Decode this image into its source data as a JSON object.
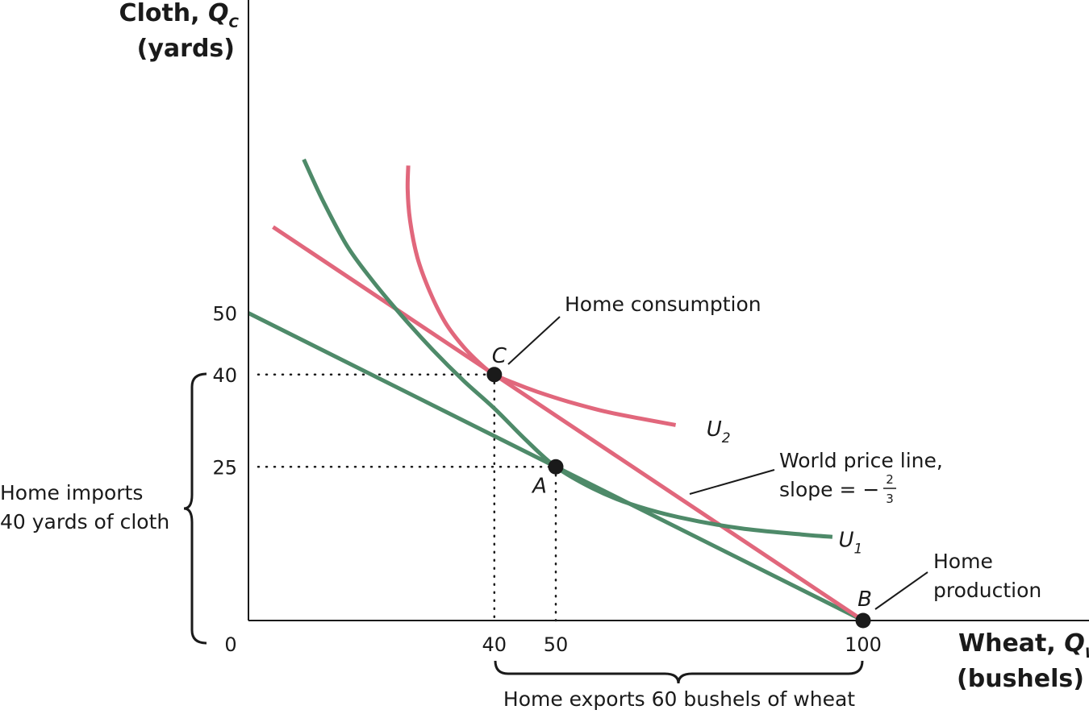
{
  "chart_data": {
    "type": "line",
    "y_axis": {
      "title_line1": "Cloth, ",
      "title_var": "Q",
      "title_sub": "C",
      "title_line2": "(yards)"
    },
    "x_axis": {
      "title_line1": "Wheat, ",
      "title_var": "Q",
      "title_sub": "W",
      "title_line2": "(bushels)"
    },
    "xlim": [
      0,
      137
    ],
    "ylim": [
      0,
      92
    ],
    "origin_label": "0",
    "x_ticks": [
      {
        "value": 40,
        "label": "40"
      },
      {
        "value": 50,
        "label": "50"
      },
      {
        "value": 100,
        "label": "100"
      }
    ],
    "y_ticks": [
      {
        "value": 25,
        "label": "25"
      },
      {
        "value": 40,
        "label": "40"
      },
      {
        "value": 50,
        "label": "50"
      }
    ],
    "colors": {
      "green": "#4e8a69",
      "red": "#e1677c",
      "axis": "#1a1a1a"
    },
    "lines": [
      {
        "id": "home-price-line",
        "color": "green",
        "x": [
          0,
          100
        ],
        "y": [
          50,
          0
        ]
      },
      {
        "id": "world-price-line",
        "color": "red",
        "x": [
          4,
          100
        ],
        "y": [
          64,
          0
        ]
      }
    ],
    "curves": [
      {
        "id": "u1-curve",
        "color": "green",
        "label_var": "U",
        "label_sub": "1",
        "label_at": {
          "x": 96,
          "y": 12
        },
        "x": [
          9,
          12,
          16,
          20,
          25,
          30,
          35,
          40,
          45,
          50,
          56,
          62,
          70,
          80,
          90,
          95
        ],
        "y": [
          75,
          68.5,
          61,
          55.5,
          49.5,
          44,
          39,
          34.5,
          29.5,
          25,
          21.5,
          19,
          16.8,
          15,
          14,
          13.6
        ]
      },
      {
        "id": "u2-curve",
        "color": "red",
        "label_var": "U",
        "label_sub": "2",
        "label_at": {
          "x": 74.5,
          "y": 30
        },
        "x": [
          26,
          25.9,
          26.3,
          27.5,
          29.5,
          32,
          35,
          38,
          40,
          43,
          47,
          52,
          58,
          64,
          69.5
        ],
        "y": [
          74,
          70,
          65,
          59,
          53.5,
          48.5,
          44.5,
          41.5,
          40,
          38.7,
          37.2,
          35.6,
          34,
          32.8,
          31.8
        ]
      }
    ],
    "points": [
      {
        "id": "point-c",
        "label": "C",
        "x": 40,
        "y": 40
      },
      {
        "id": "point-a",
        "label": "A",
        "x": 50,
        "y": 25
      },
      {
        "id": "point-b",
        "label": "B",
        "x": 100,
        "y": 0
      }
    ],
    "annotations": {
      "home_consumption": "Home consumption",
      "world_price_line": "World price line,",
      "slope_prefix": "slope = −",
      "slope_num": "2",
      "slope_den": "3",
      "home_production_1": "Home",
      "home_production_2": "production",
      "imports_1": "Home imports",
      "imports_2": "40 yards of cloth",
      "exports": "Home exports 60 bushels of wheat"
    }
  }
}
